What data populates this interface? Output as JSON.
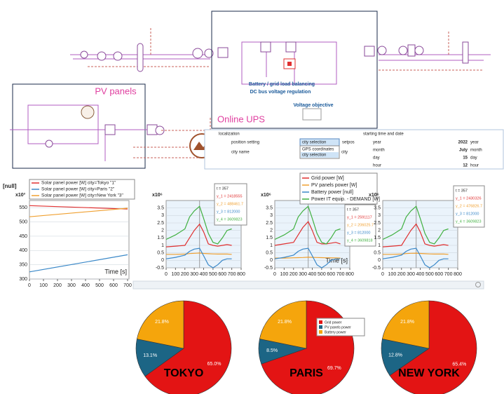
{
  "ui": {
    "diagram": {
      "pv_label": "PV panels",
      "ups_label": "Online UPS",
      "balancing_label": "Battery / grid load balancing",
      "regulation_label": "DC bus voltage regulation",
      "voltage_label": "Voltage objective"
    },
    "localization": {
      "title": "localization",
      "position_label": "position setting",
      "dropdown": "city selection",
      "setpos": "setpos",
      "options": [
        "GPS coordinates",
        "city selection"
      ],
      "city_label": "city name",
      "city_value": "city"
    },
    "date_panel": {
      "title": "starting time and date",
      "rows": [
        {
          "label": "year",
          "value": 2022,
          "unit": "year"
        },
        {
          "label": "month",
          "value": "July",
          "unit": "month"
        },
        {
          "label": "day",
          "value": 15,
          "unit": "day"
        },
        {
          "label": "hour",
          "value": 12,
          "unit": "hour"
        }
      ]
    }
  },
  "chart_data": [
    {
      "type": "line",
      "y_label": "[null]",
      "scale_label": "x10³",
      "x_label": "Time [s]",
      "legend": "upper left",
      "x": [
        0,
        700
      ],
      "xlim": [
        0,
        710
      ],
      "xticks": [
        0,
        100,
        200,
        300,
        400,
        500,
        600,
        700
      ],
      "ylim": [
        300,
        575
      ],
      "yticks": [
        300,
        350,
        400,
        450,
        500,
        550
      ],
      "series": [
        {
          "name": "Solar panel power [W] city=Tokyo \"1\"",
          "color": "#e03030",
          "values": [
            557,
            545
          ]
        },
        {
          "name": "Solar panel power [W] city=Paris \"2\"",
          "color": "#3a88c8",
          "values": [
            325,
            385
          ]
        },
        {
          "name": "Solar panel power [W] city=New York \"3\"",
          "color": "#f0a030",
          "values": [
            518,
            548
          ]
        }
      ]
    },
    {
      "type": "line",
      "scale_label": "x10⁶",
      "x": [
        0,
        100,
        200,
        250,
        300,
        357,
        400,
        450,
        500,
        550,
        600,
        650,
        700
      ],
      "xlim": [
        0,
        800
      ],
      "xticks": [
        0,
        100,
        200,
        300,
        400,
        500,
        600,
        700,
        800
      ],
      "ylim": [
        -0.5,
        4
      ],
      "yticks": [
        -0.5,
        0,
        0.5,
        1,
        1.5,
        2,
        2.5,
        3,
        3.5
      ],
      "cursor": 357,
      "annotations": [
        "t   = 357",
        "y_1 = 2418555",
        "y_2 = 488461.7",
        "y_3 = 812000",
        "y_4 = 3609823"
      ],
      "series": [
        {
          "color": "#e03030",
          "values": [
            0.9,
            0.95,
            1.0,
            1.5,
            2.0,
            2.42,
            1.9,
            1.1,
            1.0,
            0.95,
            1.0,
            1.05,
            1.0
          ]
        },
        {
          "color": "#f0a030",
          "values": [
            0.4,
            0.4,
            0.42,
            0.45,
            0.47,
            0.49,
            0.46,
            0.44,
            0.43,
            0.42,
            0.42,
            0.42,
            0.4
          ]
        },
        {
          "color": "#3a88c8",
          "values": [
            0.1,
            0.2,
            0.35,
            0.6,
            0.75,
            0.81,
            0.3,
            -0.3,
            -0.5,
            -0.3,
            0.0,
            0.1,
            0.1
          ]
        },
        {
          "color": "#40b040",
          "values": [
            1.4,
            1.7,
            2.1,
            2.9,
            3.3,
            3.61,
            2.8,
            1.8,
            1.2,
            1.1,
            1.5,
            2.0,
            2.1
          ]
        }
      ]
    },
    {
      "type": "line",
      "scale_label": "x10⁶",
      "x_label": "Time [s]",
      "legend": "upper right",
      "x": [
        0,
        100,
        200,
        250,
        300,
        357,
        400,
        450,
        500,
        550,
        600,
        650,
        700
      ],
      "xlim": [
        0,
        800
      ],
      "xticks": [
        0,
        100,
        200,
        300,
        400,
        500,
        600,
        700,
        800
      ],
      "ylim": [
        -0.5,
        4
      ],
      "yticks": [
        -0.5,
        0,
        0.5,
        1,
        1.5,
        2,
        2.5,
        3,
        3.5
      ],
      "cursor": 357,
      "annotations": [
        "t   = 357",
        "y_1 = 2591117",
        "y_2 = 206025.7",
        "y_3 = 812000",
        "y_4 = 3609818"
      ],
      "series": [
        {
          "name": "Grid power [W]",
          "color": "#e03030",
          "values": [
            1.0,
            1.1,
            1.2,
            1.7,
            2.2,
            2.59,
            2.0,
            1.2,
            1.1,
            1.1,
            1.15,
            1.2,
            1.1
          ]
        },
        {
          "name": "PV panels power [W]",
          "color": "#f0a030",
          "values": [
            0.15,
            0.15,
            0.17,
            0.18,
            0.19,
            0.21,
            0.2,
            0.19,
            0.18,
            0.17,
            0.17,
            0.16,
            0.15
          ]
        },
        {
          "name": "Battery power [null]",
          "color": "#3a88c8",
          "values": [
            0.1,
            0.2,
            0.35,
            0.6,
            0.75,
            0.81,
            0.3,
            -0.3,
            -0.5,
            -0.3,
            0.0,
            0.1,
            0.1
          ]
        },
        {
          "name": "Power IT equip. - DEMAND [W]",
          "color": "#40b040",
          "values": [
            1.4,
            1.7,
            2.1,
            2.9,
            3.3,
            3.61,
            2.8,
            1.8,
            1.2,
            1.1,
            1.5,
            2.0,
            2.1
          ]
        }
      ]
    },
    {
      "type": "line",
      "scale_label": "x10⁶",
      "x": [
        0,
        100,
        200,
        250,
        300,
        357,
        400,
        450,
        500,
        550,
        600,
        650,
        700
      ],
      "xlim": [
        0,
        800
      ],
      "xticks": [
        0,
        100,
        200,
        300,
        400,
        500,
        600,
        700,
        800
      ],
      "ylim": [
        -0.5,
        4
      ],
      "yticks": [
        -0.5,
        0,
        0.5,
        1,
        1.5,
        2,
        2.5,
        3,
        3.5
      ],
      "cursor": 357,
      "annotations": [
        "t   = 357",
        "y_1 = 2430326",
        "y_2 = 476826.7",
        "y_3 = 812000",
        "y_4 = 3609823"
      ],
      "series": [
        {
          "color": "#e03030",
          "values": [
            0.9,
            0.95,
            1.0,
            1.5,
            2.0,
            2.43,
            1.9,
            1.1,
            1.0,
            0.95,
            1.0,
            1.05,
            1.0
          ]
        },
        {
          "color": "#f0a030",
          "values": [
            0.4,
            0.4,
            0.42,
            0.45,
            0.47,
            0.48,
            0.46,
            0.44,
            0.43,
            0.42,
            0.42,
            0.42,
            0.4
          ]
        },
        {
          "color": "#3a88c8",
          "values": [
            0.1,
            0.2,
            0.35,
            0.6,
            0.75,
            0.81,
            0.3,
            -0.3,
            -0.5,
            -0.3,
            0.0,
            0.1,
            0.1
          ]
        },
        {
          "color": "#40b040",
          "values": [
            1.4,
            1.7,
            2.1,
            2.9,
            3.3,
            3.61,
            2.8,
            1.8,
            1.2,
            1.1,
            1.5,
            2.0,
            2.1
          ]
        }
      ]
    },
    {
      "type": "pie",
      "title": "TOKYO",
      "categories": [
        "Grid power",
        "PV panels power",
        "Battery power"
      ],
      "colors": [
        "#e31414",
        "#1c6585",
        "#f5a50c"
      ],
      "values": [
        65.0,
        13.1,
        21.8
      ],
      "value_labels": [
        "65.0%",
        "13.1%",
        "21.8%"
      ]
    },
    {
      "type": "pie",
      "title": "PARIS",
      "categories": [
        "Grid power",
        "PV panels power",
        "Battery power"
      ],
      "legend": "upper right",
      "colors": [
        "#e31414",
        "#1c6585",
        "#f5a50c"
      ],
      "values": [
        69.7,
        8.5,
        21.8
      ],
      "value_labels": [
        "69.7%",
        "8.5%",
        "21.8%"
      ]
    },
    {
      "type": "pie",
      "title": "NEW YORK",
      "categories": [
        "Grid power",
        "PV panels power",
        "Battery power"
      ],
      "colors": [
        "#e31414",
        "#1c6585",
        "#f5a50c"
      ],
      "values": [
        65.4,
        12.8,
        21.8
      ],
      "value_labels": [
        "65.4%",
        "12.8%",
        "21.8%"
      ]
    }
  ]
}
